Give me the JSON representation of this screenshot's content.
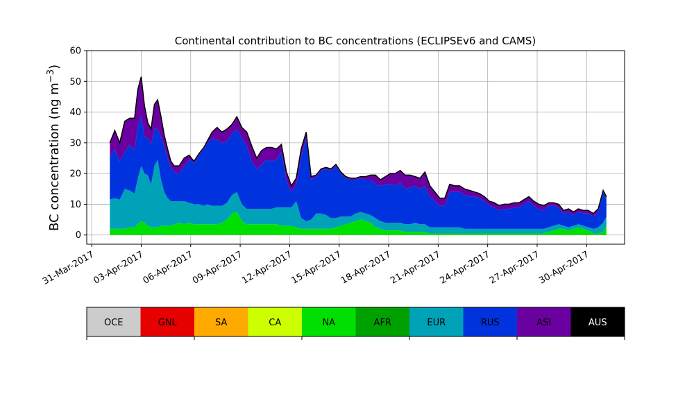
{
  "chart_data": {
    "type": "area",
    "title": "Continental contribution to BC concentrations (ECLIPSEv6 and CAMS)",
    "xlabel": "",
    "ylabel_main": "BC concentration (ng m",
    "ylabel_sup": "−3",
    "ylabel_close": ")",
    "ylim": [
      -3,
      60
    ],
    "xlim_days": [
      -0.3,
      32.3
    ],
    "yticks": [
      0,
      10,
      20,
      30,
      40,
      50,
      60
    ],
    "grid": true,
    "xtick_days": [
      0,
      3,
      6,
      9,
      12,
      15,
      18,
      21,
      24,
      27,
      30
    ],
    "xtick_labels": [
      "31-Mar-2017",
      "03-Apr-2017",
      "06-Apr-2017",
      "09-Apr-2017",
      "12-Apr-2017",
      "15-Apr-2017",
      "18-Apr-2017",
      "21-Apr-2017",
      "24-Apr-2017",
      "27-Apr-2017",
      "30-Apr-2017"
    ],
    "x_days": [
      1.1,
      1.4,
      1.7,
      2.0,
      2.3,
      2.6,
      2.8,
      3.0,
      3.2,
      3.4,
      3.6,
      3.8,
      4.0,
      4.2,
      4.4,
      4.6,
      4.8,
      5.0,
      5.3,
      5.6,
      5.9,
      6.2,
      6.5,
      6.8,
      7.0,
      7.3,
      7.6,
      7.9,
      8.2,
      8.5,
      8.8,
      9.1,
      9.4,
      9.7,
      10.0,
      10.3,
      10.6,
      10.9,
      11.2,
      11.5,
      11.8,
      12.1,
      12.4,
      12.7,
      13.0,
      13.3,
      13.6,
      13.9,
      14.2,
      14.5,
      14.8,
      15.1,
      15.4,
      15.7,
      16.0,
      16.3,
      16.6,
      16.9,
      17.2,
      17.5,
      17.8,
      18.1,
      18.4,
      18.7,
      19.0,
      19.3,
      19.6,
      19.9,
      20.2,
      20.5,
      20.8,
      21.1,
      21.4,
      21.7,
      22.0,
      22.3,
      22.6,
      22.9,
      23.2,
      23.5,
      23.8,
      24.1,
      24.4,
      24.7,
      25.0,
      25.3,
      25.6,
      25.9,
      26.2,
      26.5,
      26.8,
      27.1,
      27.4,
      27.7,
      28.0,
      28.3,
      28.6,
      28.9,
      29.2,
      29.5,
      29.8,
      30.1,
      30.4,
      30.7,
      31.0,
      31.2
    ],
    "series": [
      {
        "name": "NA",
        "color": "#00e000",
        "values": [
          2.0,
          2.0,
          2.0,
          2.0,
          2.5,
          2.5,
          3.5,
          4.5,
          4.0,
          3.0,
          2.5,
          2.5,
          2.5,
          3.0,
          3.0,
          3.0,
          3.0,
          3.5,
          4.0,
          3.5,
          4.0,
          3.5,
          3.5,
          3.5,
          3.5,
          3.5,
          3.5,
          4.0,
          5.0,
          7.0,
          7.5,
          4.5,
          3.5,
          3.5,
          3.5,
          3.5,
          3.5,
          3.5,
          3.5,
          3.0,
          3.0,
          3.0,
          2.5,
          2.0,
          2.0,
          2.0,
          2.0,
          2.0,
          2.0,
          2.0,
          2.5,
          3.0,
          3.5,
          4.0,
          4.5,
          5.0,
          4.5,
          4.0,
          2.5,
          2.0,
          1.5,
          1.5,
          1.5,
          1.5,
          1.0,
          1.0,
          1.0,
          1.0,
          1.0,
          0.5,
          0.5,
          0.5,
          0.5,
          0.5,
          0.5,
          0.5,
          0.5,
          0.5,
          0.5,
          0.5,
          0.5,
          0.5,
          0.5,
          0.5,
          0.5,
          0.5,
          0.5,
          0.5,
          0.5,
          0.5,
          0.5,
          0.5,
          0.5,
          1.0,
          1.5,
          2.0,
          2.0,
          1.5,
          2.0,
          2.5,
          2.0,
          1.5,
          0.5,
          0.5,
          1.0,
          3.0
        ]
      },
      {
        "name": "EUR",
        "color": "#00a2b8",
        "values": [
          9.5,
          10.0,
          9.5,
          13.0,
          12.0,
          11.0,
          15.0,
          18.0,
          16.0,
          16.5,
          14.0,
          20.0,
          22.0,
          15.0,
          11.0,
          9.0,
          8.0,
          7.5,
          7.0,
          7.5,
          6.5,
          6.5,
          6.5,
          6.0,
          6.5,
          6.0,
          6.0,
          5.5,
          5.5,
          6.0,
          6.5,
          5.5,
          5.0,
          5.0,
          5.0,
          5.0,
          5.0,
          5.0,
          5.5,
          6.0,
          6.0,
          6.0,
          8.5,
          3.5,
          2.5,
          3.0,
          5.0,
          5.0,
          4.5,
          3.5,
          3.0,
          3.0,
          2.5,
          2.0,
          2.5,
          2.5,
          2.5,
          2.5,
          3.0,
          2.5,
          2.5,
          2.5,
          2.5,
          2.5,
          2.5,
          2.5,
          3.0,
          2.5,
          2.5,
          2.0,
          2.0,
          2.0,
          2.0,
          2.0,
          2.0,
          2.0,
          1.5,
          1.5,
          1.5,
          1.5,
          1.5,
          1.5,
          1.5,
          1.5,
          1.5,
          1.5,
          1.5,
          1.5,
          1.5,
          1.5,
          1.5,
          1.5,
          1.5,
          1.5,
          1.5,
          1.5,
          1.0,
          1.0,
          1.0,
          1.0,
          1.0,
          1.0,
          1.5,
          2.0,
          3.0,
          3.0
        ]
      },
      {
        "name": "RUS",
        "color": "#0033dd",
        "values": [
          14.0,
          16.0,
          12.5,
          12.0,
          15.0,
          14.0,
          17.0,
          16.5,
          12.0,
          12.0,
          13.0,
          12.0,
          10.0,
          14.0,
          15.0,
          13.0,
          11.0,
          9.5,
          9.0,
          11.5,
          14.0,
          13.5,
          16.0,
          18.5,
          20.0,
          22.0,
          21.5,
          20.5,
          20.0,
          20.0,
          20.5,
          21.5,
          20.5,
          15.5,
          13.0,
          14.5,
          16.0,
          15.5,
          15.5,
          18.0,
          9.0,
          5.0,
          5.5,
          20.0,
          27.0,
          13.0,
          12.0,
          14.0,
          15.0,
          15.5,
          17.0,
          14.0,
          12.5,
          12.0,
          11.0,
          11.0,
          11.0,
          11.5,
          11.0,
          11.5,
          12.5,
          12.5,
          12.0,
          13.0,
          11.5,
          12.0,
          12.0,
          11.5,
          12.5,
          10.0,
          8.5,
          7.0,
          7.0,
          11.5,
          11.5,
          11.5,
          11.0,
          10.5,
          10.5,
          10.0,
          9.0,
          7.5,
          7.0,
          6.0,
          6.5,
          6.5,
          7.0,
          7.0,
          8.0,
          9.0,
          7.5,
          6.5,
          6.0,
          7.0,
          6.5,
          5.5,
          4.0,
          5.0,
          3.5,
          4.0,
          4.0,
          4.5,
          4.0,
          5.0,
          10.0,
          6.0
        ]
      },
      {
        "name": "ASI",
        "color": "#6a00a0",
        "values": [
          4.5,
          6.0,
          6.0,
          10.0,
          8.5,
          10.5,
          12.0,
          12.5,
          10.0,
          5.0,
          5.0,
          8.0,
          9.5,
          6.5,
          3.5,
          3.0,
          2.0,
          2.0,
          2.5,
          2.5,
          1.5,
          0.5,
          0.5,
          0.5,
          0.5,
          2.0,
          4.0,
          3.5,
          4.0,
          3.0,
          4.0,
          3.5,
          4.5,
          5.0,
          3.5,
          4.5,
          4.0,
          4.5,
          3.5,
          2.5,
          2.5,
          2.0,
          2.0,
          2.5,
          2.0,
          1.0,
          0.5,
          0.5,
          0.5,
          0.5,
          0.5,
          0.5,
          0.5,
          0.5,
          0.5,
          0.5,
          1.0,
          1.5,
          3.0,
          2.0,
          2.5,
          3.5,
          4.0,
          4.0,
          4.5,
          4.0,
          3.0,
          3.5,
          4.5,
          3.5,
          3.0,
          2.5,
          2.5,
          2.5,
          2.0,
          2.0,
          2.0,
          2.0,
          1.5,
          1.5,
          1.5,
          1.5,
          1.5,
          1.5,
          1.5,
          1.5,
          1.5,
          1.5,
          1.5,
          1.5,
          1.5,
          1.5,
          1.5,
          1.0,
          1.0,
          1.0,
          1.0,
          1.0,
          1.0,
          1.0,
          1.0,
          1.0,
          1.0,
          1.0,
          0.5,
          0.5
        ]
      }
    ],
    "legend": {
      "position": "bottom",
      "entries": [
        {
          "name": "OCE",
          "color": "#cccccc"
        },
        {
          "name": "GNL",
          "color": "#e60000"
        },
        {
          "name": "SA",
          "color": "#ffaa00"
        },
        {
          "name": "CA",
          "color": "#ccff00"
        },
        {
          "name": "NA",
          "color": "#00e000"
        },
        {
          "name": "AFR",
          "color": "#00a000"
        },
        {
          "name": "EUR",
          "color": "#00a2b8"
        },
        {
          "name": "RUS",
          "color": "#0033dd"
        },
        {
          "name": "ASI",
          "color": "#6a00a0"
        },
        {
          "name": "AUS",
          "color": "#000000"
        }
      ]
    },
    "total_line_color": "#000000",
    "grid_color": "#b0b0b0"
  }
}
